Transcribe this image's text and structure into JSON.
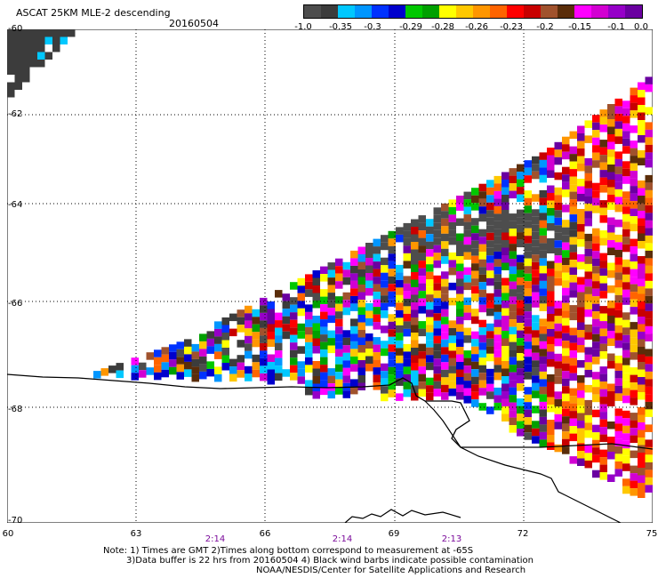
{
  "header": {
    "title": "ASCAT 25KM MLE-2 descending",
    "date": "20160504"
  },
  "colorbar": {
    "colors": [
      "#4d4d4d",
      "#3c3c3c",
      "#00c8ff",
      "#0096ff",
      "#0032ff",
      "#0000cd",
      "#00c800",
      "#00a000",
      "#ffff00",
      "#ffc800",
      "#ff9600",
      "#ff6400",
      "#ff0000",
      "#c80000",
      "#a0522d",
      "#5a2d0a",
      "#ff00ff",
      "#d200d2",
      "#9600c8",
      "#6a00a0"
    ],
    "ticks": [
      "-1.0",
      "-0.35",
      "-0.3",
      "-0.29",
      "-0.28",
      "-0.26",
      "-0.23",
      "-0.2",
      "-0.15",
      "-0.1",
      "0.0"
    ]
  },
  "axes": {
    "lat_labels": [
      "-60",
      "-62",
      "-64",
      "-66",
      "-68",
      "-70"
    ],
    "lon_labels": [
      "60",
      "63",
      "66",
      "69",
      "72",
      "75"
    ],
    "time_labels": [
      "2:14",
      "2:14",
      "2:13"
    ]
  },
  "footer": {
    "line1": "Note: 1) Times are GMT 2)Times along bottom correspond to measurement at -65S",
    "line2": "3)Data buffer is 22 hrs from 20160504 4) Black wind barbs indicate possible contamination",
    "line3": "NOAA/NESDIS/Center for Satellite Applications and Research"
  }
}
